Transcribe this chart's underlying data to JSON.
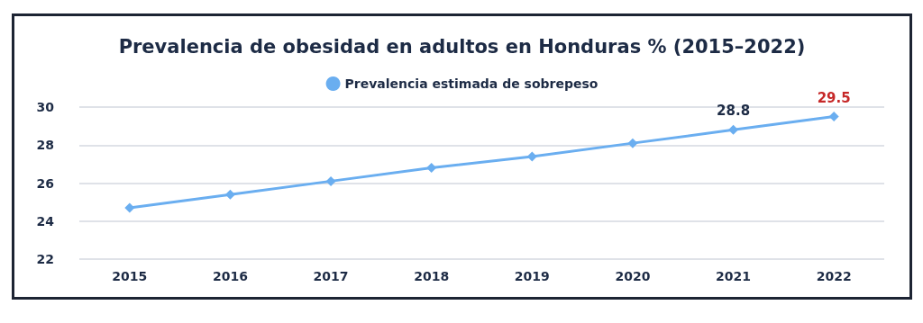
{
  "chart_data": {
    "type": "line",
    "title": "Prevalencia de obesidad en adultos en Honduras % (2015–2022)",
    "categories": [
      "2015",
      "2016",
      "2017",
      "2018",
      "2019",
      "2020",
      "2021",
      "2022"
    ],
    "series": [
      {
        "name": "Prevalencia estimada de sobrepeso",
        "color": "#6aaef0",
        "values": [
          24.7,
          25.4,
          26.1,
          26.8,
          27.4,
          28.1,
          28.8,
          29.5
        ],
        "value_labels": [
          null,
          null,
          null,
          null,
          null,
          null,
          "28.8",
          "29.5"
        ]
      }
    ],
    "ylim": [
      22,
      30
    ],
    "yticks": [
      22,
      24,
      26,
      28,
      30
    ],
    "grid": "y",
    "legend": "top",
    "marker": "diamond",
    "line_style": "solid"
  }
}
